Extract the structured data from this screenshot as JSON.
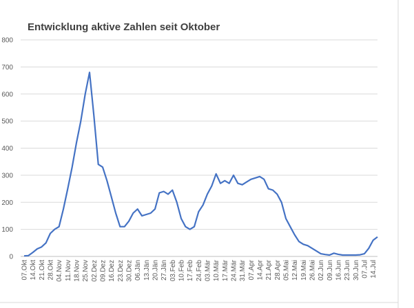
{
  "chart_data": {
    "type": "line",
    "title": "Entwicklung aktive Zahlen seit Oktober",
    "categories": [
      "07.Okt",
      null,
      "14.Okt",
      null,
      "21.Okt",
      null,
      "28.Okt",
      null,
      "04.Nov",
      null,
      "11.Nov",
      null,
      "18.Nov",
      null,
      "25.Nov",
      null,
      "02.Dez",
      null,
      "09.Dez",
      null,
      "16.Dez",
      null,
      "23.Dez",
      null,
      "30.Dez",
      null,
      "06.Jän",
      null,
      "13.Jän",
      null,
      "20.Jän",
      null,
      "27.Jän",
      null,
      "03.Feb",
      null,
      "10.Feb",
      null,
      "17.Feb",
      null,
      "24.Feb",
      null,
      "03.Mär",
      null,
      "10.Mär",
      null,
      "17.Mär",
      null,
      "24.Mär",
      null,
      "31.Mär",
      null,
      "07.Apr",
      null,
      "14.Apr",
      null,
      "21.Apr",
      null,
      "28.Apr",
      null,
      "05.Mai",
      null,
      "12.Mai",
      null,
      "19.Mai",
      null,
      "26.Mai",
      null,
      "02.Jun",
      null,
      "09.Jun",
      null,
      "16.Jun",
      null,
      "23.Jun",
      null,
      "30.Jun",
      null,
      "07.Jul",
      null,
      "14.Jul",
      null
    ],
    "values": [
      2,
      3,
      15,
      28,
      35,
      50,
      85,
      100,
      110,
      175,
      250,
      330,
      420,
      500,
      600,
      680,
      520,
      340,
      330,
      280,
      220,
      160,
      110,
      110,
      130,
      160,
      175,
      150,
      155,
      160,
      175,
      235,
      240,
      230,
      245,
      200,
      140,
      110,
      100,
      110,
      165,
      190,
      230,
      260,
      305,
      270,
      280,
      270,
      300,
      270,
      265,
      275,
      285,
      290,
      295,
      285,
      250,
      245,
      230,
      200,
      140,
      110,
      80,
      55,
      45,
      40,
      30,
      20,
      10,
      7,
      5,
      12,
      8,
      5,
      5,
      5,
      5,
      6,
      10,
      30,
      60,
      72
    ],
    "color": "#4472c4",
    "ylim": [
      0,
      800
    ],
    "yticks": [
      0,
      100,
      200,
      300,
      400,
      500,
      600,
      700,
      800
    ],
    "grid": true
  }
}
